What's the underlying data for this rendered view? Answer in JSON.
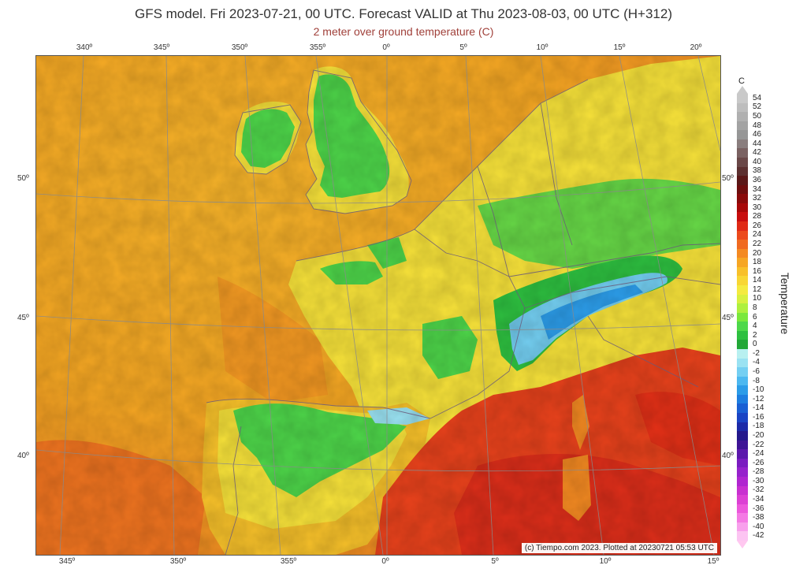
{
  "header": {
    "title": "GFS model. Fri 2023-07-21, 00 UTC. Forecast VALID at Thu 2023-08-03, 00 UTC (H+312)",
    "subtitle": "2 meter over ground temperature (C)"
  },
  "map": {
    "credit": "(c) Tiempo.com 2023. Plotted at 20230721 05:53 UTC",
    "top_ticks": [
      {
        "label": "340º"
      },
      {
        "label": "345º"
      },
      {
        "label": "350º"
      },
      {
        "label": "355º"
      },
      {
        "label": "0º"
      },
      {
        "label": "5º"
      },
      {
        "label": "10º"
      },
      {
        "label": "15º"
      },
      {
        "label": "20º"
      }
    ],
    "bottom_ticks": [
      {
        "label": "345º"
      },
      {
        "label": "350º"
      },
      {
        "label": "355º"
      },
      {
        "label": "0º"
      },
      {
        "label": "5º"
      },
      {
        "label": "10º"
      },
      {
        "label": "15º"
      }
    ],
    "left_ticks": [
      {
        "label": "50º"
      },
      {
        "label": "45º"
      },
      {
        "label": "40º"
      }
    ],
    "right_ticks": [
      {
        "label": "50º"
      },
      {
        "label": "45º"
      },
      {
        "label": "40º"
      }
    ],
    "colors": {
      "sea_warm": "#f5a623",
      "sea_hot": "#ef6a1c",
      "mediterranean": "#e8421c",
      "land_yellow": "#f7e23a",
      "land_cool": "#4ed64a",
      "land_cold": "#3fb0e0",
      "graticule": "#8a8a8a",
      "border": "#6a5a7a"
    }
  },
  "legend": {
    "unit": "C",
    "title": "Temperature",
    "levels": [
      {
        "label": "54",
        "color": "#c9c9c9"
      },
      {
        "label": "52",
        "color": "#bdbdbd"
      },
      {
        "label": "50",
        "color": "#b0b0b0"
      },
      {
        "label": "48",
        "color": "#a3a3a3"
      },
      {
        "label": "46",
        "color": "#969696"
      },
      {
        "label": "44",
        "color": "#8a7e7e"
      },
      {
        "label": "42",
        "color": "#7a6262"
      },
      {
        "label": "40",
        "color": "#6a4848"
      },
      {
        "label": "38",
        "color": "#5c3030"
      },
      {
        "label": "36",
        "color": "#5a1818"
      },
      {
        "label": "34",
        "color": "#6e0e0e"
      },
      {
        "label": "32",
        "color": "#8a0a0a"
      },
      {
        "label": "30",
        "color": "#a80808"
      },
      {
        "label": "28",
        "color": "#c80e0e"
      },
      {
        "label": "26",
        "color": "#e02a16"
      },
      {
        "label": "24",
        "color": "#ec4a1c"
      },
      {
        "label": "22",
        "color": "#f06a20"
      },
      {
        "label": "20",
        "color": "#f48a22"
      },
      {
        "label": "18",
        "color": "#f6a624"
      },
      {
        "label": "16",
        "color": "#f8c02a"
      },
      {
        "label": "14",
        "color": "#f8d634"
      },
      {
        "label": "12",
        "color": "#f4ea40"
      },
      {
        "label": "10",
        "color": "#d8f040"
      },
      {
        "label": "8",
        "color": "#aef03e"
      },
      {
        "label": "6",
        "color": "#7ae83c"
      },
      {
        "label": "4",
        "color": "#4ed84a"
      },
      {
        "label": "2",
        "color": "#2ec040"
      },
      {
        "label": "0",
        "color": "#22a838"
      },
      {
        "label": "-2",
        "color": "#b8f0f0"
      },
      {
        "label": "-4",
        "color": "#9ae2f2"
      },
      {
        "label": "-6",
        "color": "#74cff2"
      },
      {
        "label": "-8",
        "color": "#4cb8f0"
      },
      {
        "label": "-10",
        "color": "#2c9ce8"
      },
      {
        "label": "-12",
        "color": "#1e7ee0"
      },
      {
        "label": "-14",
        "color": "#1a60d4"
      },
      {
        "label": "-16",
        "color": "#1a44c4"
      },
      {
        "label": "-18",
        "color": "#1c2aa8"
      },
      {
        "label": "-20",
        "color": "#24188c"
      },
      {
        "label": "-22",
        "color": "#3e1496"
      },
      {
        "label": "-24",
        "color": "#5c18ac"
      },
      {
        "label": "-26",
        "color": "#7a1cc0"
      },
      {
        "label": "-28",
        "color": "#9622cc"
      },
      {
        "label": "-30",
        "color": "#b026d0"
      },
      {
        "label": "-32",
        "color": "#c830d0"
      },
      {
        "label": "-34",
        "color": "#dc40d4"
      },
      {
        "label": "-36",
        "color": "#ec58dc"
      },
      {
        "label": "-38",
        "color": "#f47ae4"
      },
      {
        "label": "-40",
        "color": "#f8a0ec"
      },
      {
        "label": "-42",
        "color": "#fcc4f2"
      }
    ]
  }
}
